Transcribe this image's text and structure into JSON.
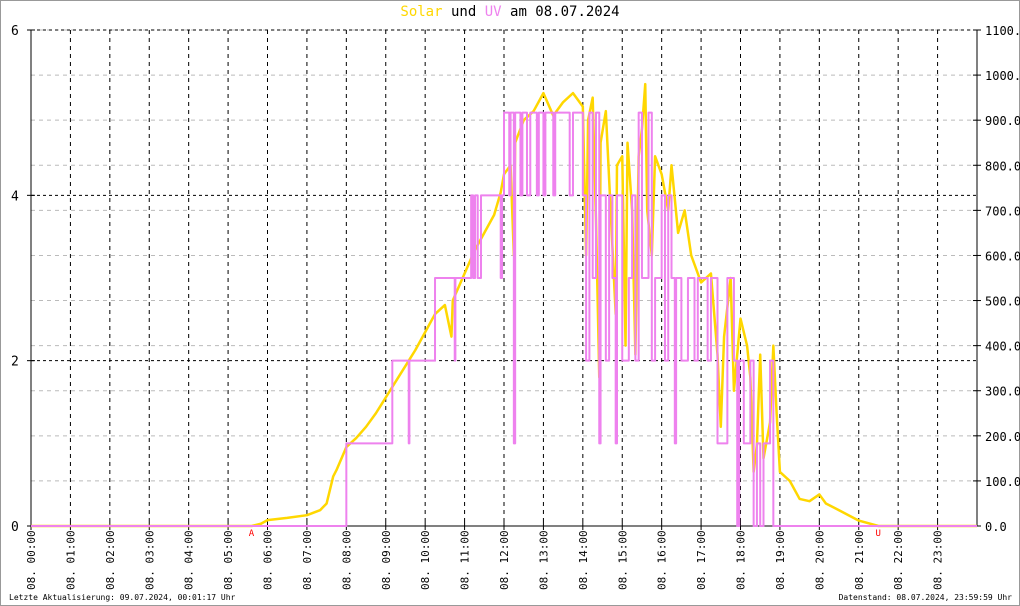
{
  "chart_data": {
    "type": "line",
    "title": {
      "part1": "Solar",
      "part2": "und",
      "part3": "UV",
      "part4": "am 08.07.2024"
    },
    "x_range": [
      "00:00",
      "24:00"
    ],
    "x_tick_labels": [
      "08. 00:00",
      "08. 01:00",
      "08. 02:00",
      "08. 03:00",
      "08. 04:00",
      "08. 05:00",
      "08. 06:00",
      "08. 07:00",
      "08. 08:00",
      "08. 09:00",
      "08. 10:00",
      "08. 11:00",
      "08. 12:00",
      "08. 13:00",
      "08. 14:00",
      "08. 15:00",
      "08. 16:00",
      "08. 17:00",
      "08. 18:00",
      "08. 19:00",
      "08. 20:00",
      "08. 21:00",
      "08. 22:00",
      "08. 23:00"
    ],
    "y_left": {
      "range": [
        0,
        6
      ],
      "ticks": [
        "0",
        "2",
        "4",
        "6"
      ]
    },
    "y_right": {
      "range": [
        0,
        1100
      ],
      "ticks": [
        "0.0",
        "100.0",
        "200.0",
        "300.0",
        "400.0",
        "500.0",
        "600.0",
        "700.0",
        "800.0",
        "900.0",
        "1000.0",
        "1100.0"
      ]
    },
    "grid": true,
    "colors": {
      "solar": "#ffd700",
      "uv": "#ee82ee",
      "markers": "#ff0000"
    },
    "series": [
      {
        "name": "Solar",
        "axis": "right",
        "color": "#ffd700",
        "points": [
          [
            "00:00",
            0
          ],
          [
            "05:36",
            0
          ],
          [
            "05:50",
            5
          ],
          [
            "06:00",
            13
          ],
          [
            "06:30",
            18
          ],
          [
            "07:00",
            24
          ],
          [
            "07:20",
            35
          ],
          [
            "07:30",
            50
          ],
          [
            "07:40",
            110
          ],
          [
            "07:45",
            124
          ],
          [
            "08:00",
            175
          ],
          [
            "08:15",
            195
          ],
          [
            "08:30",
            220
          ],
          [
            "08:45",
            250
          ],
          [
            "09:00",
            285
          ],
          [
            "09:15",
            320
          ],
          [
            "09:30",
            355
          ],
          [
            "09:45",
            390
          ],
          [
            "10:00",
            430
          ],
          [
            "10:15",
            470
          ],
          [
            "10:30",
            490
          ],
          [
            "10:40",
            420
          ],
          [
            "10:42",
            500
          ],
          [
            "11:00",
            560
          ],
          [
            "11:15",
            610
          ],
          [
            "11:30",
            650
          ],
          [
            "11:45",
            690
          ],
          [
            "11:55",
            740
          ],
          [
            "12:00",
            780
          ],
          [
            "12:10",
            800
          ],
          [
            "12:15",
            600
          ],
          [
            "12:17",
            850
          ],
          [
            "12:30",
            900
          ],
          [
            "12:45",
            920
          ],
          [
            "13:00",
            960
          ],
          [
            "13:15",
            910
          ],
          [
            "13:30",
            940
          ],
          [
            "13:45",
            960
          ],
          [
            "14:00",
            930
          ],
          [
            "14:05",
            600
          ],
          [
            "14:08",
            900
          ],
          [
            "14:15",
            950
          ],
          [
            "14:20",
            680
          ],
          [
            "14:25",
            330
          ],
          [
            "14:27",
            850
          ],
          [
            "14:35",
            920
          ],
          [
            "14:45",
            620
          ],
          [
            "14:50",
            470
          ],
          [
            "14:52",
            800
          ],
          [
            "15:00",
            820
          ],
          [
            "15:05",
            400
          ],
          [
            "15:08",
            850
          ],
          [
            "15:15",
            700
          ],
          [
            "15:20",
            380
          ],
          [
            "15:25",
            820
          ],
          [
            "15:30",
            880
          ],
          [
            "15:35",
            980
          ],
          [
            "15:38",
            700
          ],
          [
            "15:45",
            600
          ],
          [
            "15:50",
            820
          ],
          [
            "16:00",
            780
          ],
          [
            "16:10",
            700
          ],
          [
            "16:15",
            800
          ],
          [
            "16:25",
            650
          ],
          [
            "16:35",
            700
          ],
          [
            "16:45",
            600
          ],
          [
            "17:00",
            540
          ],
          [
            "17:15",
            560
          ],
          [
            "17:25",
            380
          ],
          [
            "17:30",
            220
          ],
          [
            "17:35",
            420
          ],
          [
            "17:45",
            550
          ],
          [
            "17:50",
            300
          ],
          [
            "18:00",
            460
          ],
          [
            "18:10",
            400
          ],
          [
            "18:15",
            330
          ],
          [
            "18:20",
            120
          ],
          [
            "18:25",
            180
          ],
          [
            "18:30",
            380
          ],
          [
            "18:35",
            150
          ],
          [
            "18:45",
            230
          ],
          [
            "18:50",
            400
          ],
          [
            "18:55",
            250
          ],
          [
            "19:00",
            120
          ],
          [
            "19:15",
            100
          ],
          [
            "19:30",
            60
          ],
          [
            "19:45",
            55
          ],
          [
            "20:00",
            70
          ],
          [
            "20:10",
            50
          ],
          [
            "20:30",
            35
          ],
          [
            "21:00",
            12
          ],
          [
            "21:30",
            0
          ],
          [
            "24:00",
            0
          ]
        ]
      },
      {
        "name": "UV",
        "axis": "left",
        "color": "#ee82ee",
        "step": true,
        "points": [
          [
            "00:00",
            0
          ],
          [
            "08:00",
            1
          ],
          [
            "09:10",
            2
          ],
          [
            "09:35",
            1
          ],
          [
            "09:36",
            2
          ],
          [
            "10:15",
            3
          ],
          [
            "10:45",
            2
          ],
          [
            "10:46",
            3
          ],
          [
            "11:10",
            4
          ],
          [
            "11:13",
            3
          ],
          [
            "11:16",
            4
          ],
          [
            "11:20",
            3
          ],
          [
            "11:25",
            4
          ],
          [
            "11:55",
            3
          ],
          [
            "11:57",
            4
          ],
          [
            "12:00",
            5
          ],
          [
            "12:08",
            4
          ],
          [
            "12:10",
            5
          ],
          [
            "12:15",
            1
          ],
          [
            "12:17",
            5
          ],
          [
            "12:25",
            4
          ],
          [
            "12:28",
            5
          ],
          [
            "12:35",
            4
          ],
          [
            "12:40",
            5
          ],
          [
            "12:50",
            4
          ],
          [
            "12:53",
            5
          ],
          [
            "13:00",
            4
          ],
          [
            "13:03",
            5
          ],
          [
            "13:15",
            4
          ],
          [
            "13:18",
            5
          ],
          [
            "13:40",
            4
          ],
          [
            "13:45",
            5
          ],
          [
            "14:00",
            4
          ],
          [
            "14:05",
            2
          ],
          [
            "14:10",
            5
          ],
          [
            "14:15",
            3
          ],
          [
            "14:20",
            5
          ],
          [
            "14:25",
            1
          ],
          [
            "14:27",
            4
          ],
          [
            "14:35",
            2
          ],
          [
            "14:40",
            4
          ],
          [
            "14:45",
            3
          ],
          [
            "14:50",
            1
          ],
          [
            "14:52",
            4
          ],
          [
            "15:00",
            2
          ],
          [
            "15:10",
            3
          ],
          [
            "15:15",
            4
          ],
          [
            "15:20",
            2
          ],
          [
            "15:25",
            5
          ],
          [
            "15:30",
            3
          ],
          [
            "15:40",
            5
          ],
          [
            "15:45",
            2
          ],
          [
            "15:50",
            3
          ],
          [
            "16:00",
            4
          ],
          [
            "16:05",
            2
          ],
          [
            "16:10",
            4
          ],
          [
            "16:15",
            3
          ],
          [
            "16:20",
            1
          ],
          [
            "16:22",
            3
          ],
          [
            "16:30",
            2
          ],
          [
            "16:40",
            3
          ],
          [
            "16:50",
            2
          ],
          [
            "16:55",
            3
          ],
          [
            "17:10",
            2
          ],
          [
            "17:15",
            3
          ],
          [
            "17:25",
            1
          ],
          [
            "17:40",
            3
          ],
          [
            "17:50",
            2
          ],
          [
            "17:55",
            0
          ],
          [
            "17:58",
            2
          ],
          [
            "18:05",
            1
          ],
          [
            "18:15",
            2
          ],
          [
            "18:20",
            0
          ],
          [
            "18:25",
            1
          ],
          [
            "18:30",
            0
          ],
          [
            "18:35",
            1
          ],
          [
            "18:45",
            2
          ],
          [
            "18:50",
            0
          ],
          [
            "18:55",
            0
          ],
          [
            "24:00",
            0
          ]
        ]
      }
    ],
    "annotations": [
      {
        "time": "05:36",
        "label": "A"
      },
      {
        "time": "21:30",
        "label": "U"
      }
    ]
  },
  "footer": {
    "left": "Letzte Aktualisierung: 09.07.2024, 00:01:17 Uhr",
    "right": "Datenstand: 08.07.2024, 23:59:59 Uhr"
  }
}
